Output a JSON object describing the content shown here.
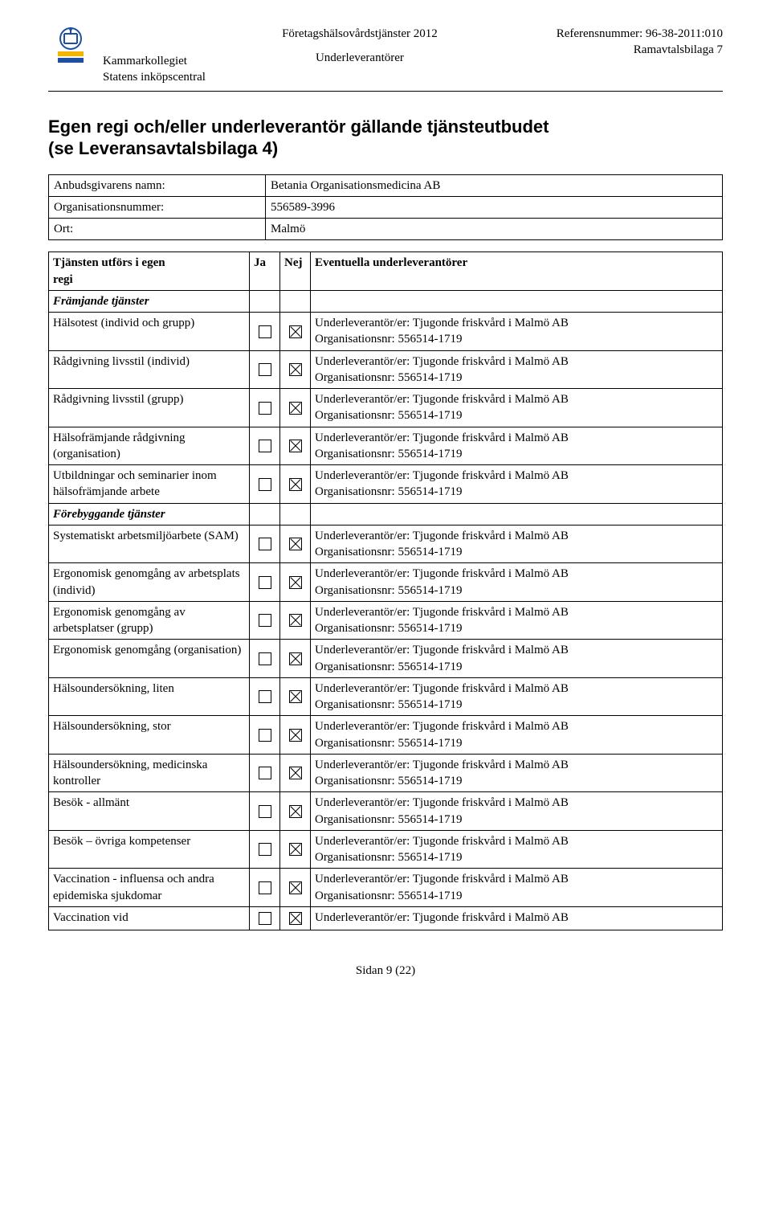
{
  "header": {
    "org_name": "Kammarkollegiet",
    "org_sub": "Statens inköpscentral",
    "doc_title": "Företagshälsovårdstjänster 2012",
    "doc_sub": "Underleverantörer",
    "ref_label": "Referensnummer: 96-38-2011:010",
    "attachment": "Ramavtalsbilaga 7"
  },
  "title_line1": "Egen regi och/eller underleverantör gällande tjänsteutbudet",
  "title_line2": "(se Leveransavtalsbilaga 4)",
  "info": {
    "provider_label": "Anbudsgivarens namn:",
    "provider_value": "Betania Organisationsmedicina AB",
    "orgnr_label": "Organisationsnummer:",
    "orgnr_value": "556589-3996",
    "city_label": "Ort:",
    "city_value": "Malmö"
  },
  "table_head": {
    "col1a": "Tjänsten utförs i egen",
    "col1b": "regi",
    "col2": "Ja",
    "col3": "Nej",
    "col4": "Eventuella underleverantörer"
  },
  "section1": "Främjande tjänster",
  "section2": "Förebyggande tjänster",
  "uv_line1": "Underleverantör/er: Tjugonde friskvård i Malmö AB",
  "uv_line2": "Organisationsnr: 556514-1719",
  "rows": [
    {
      "label": "Hälsotest (individ och grupp)",
      "ja": false,
      "nej": true,
      "two": true
    },
    {
      "label": "Rådgivning livsstil (individ)",
      "ja": false,
      "nej": true,
      "two": true
    },
    {
      "label": "Rådgivning livsstil (grupp)",
      "ja": false,
      "nej": true,
      "two": true
    },
    {
      "label": "Hälsofrämjande rådgivning (organisation)",
      "ja": false,
      "nej": true,
      "two": true
    },
    {
      "label": "Utbildningar och seminarier inom hälsofrämjande arbete",
      "ja": false,
      "nej": true,
      "two": true
    }
  ],
  "rows2": [
    {
      "label": "Systematiskt arbetsmiljöarbete (SAM)",
      "ja": false,
      "nej": true,
      "two": true
    },
    {
      "label": "Ergonomisk genomgång av arbetsplats (individ)",
      "ja": false,
      "nej": true,
      "two": true
    },
    {
      "label": "Ergonomisk genomgång av arbetsplatser (grupp)",
      "ja": false,
      "nej": true,
      "two": true
    },
    {
      "label": "Ergonomisk genomgång (organisation)",
      "ja": false,
      "nej": true,
      "two": true
    },
    {
      "label": "Hälsoundersökning, liten",
      "ja": false,
      "nej": true,
      "two": true
    },
    {
      "label": "Hälsoundersökning, stor",
      "ja": false,
      "nej": true,
      "two": true
    },
    {
      "label": "Hälsoundersökning, medicinska kontroller",
      "ja": false,
      "nej": true,
      "two": true
    },
    {
      "label": "Besök - allmänt",
      "ja": false,
      "nej": true,
      "two": true
    },
    {
      "label": "Besök – övriga kompetenser",
      "ja": false,
      "nej": true,
      "two": true
    },
    {
      "label": "Vaccination - influensa och andra epidemiska sjukdomar",
      "ja": false,
      "nej": true,
      "two": true
    },
    {
      "label": "Vaccination vid",
      "ja": false,
      "nej": true,
      "two": false
    }
  ],
  "footer": "Sidan 9 (22)"
}
